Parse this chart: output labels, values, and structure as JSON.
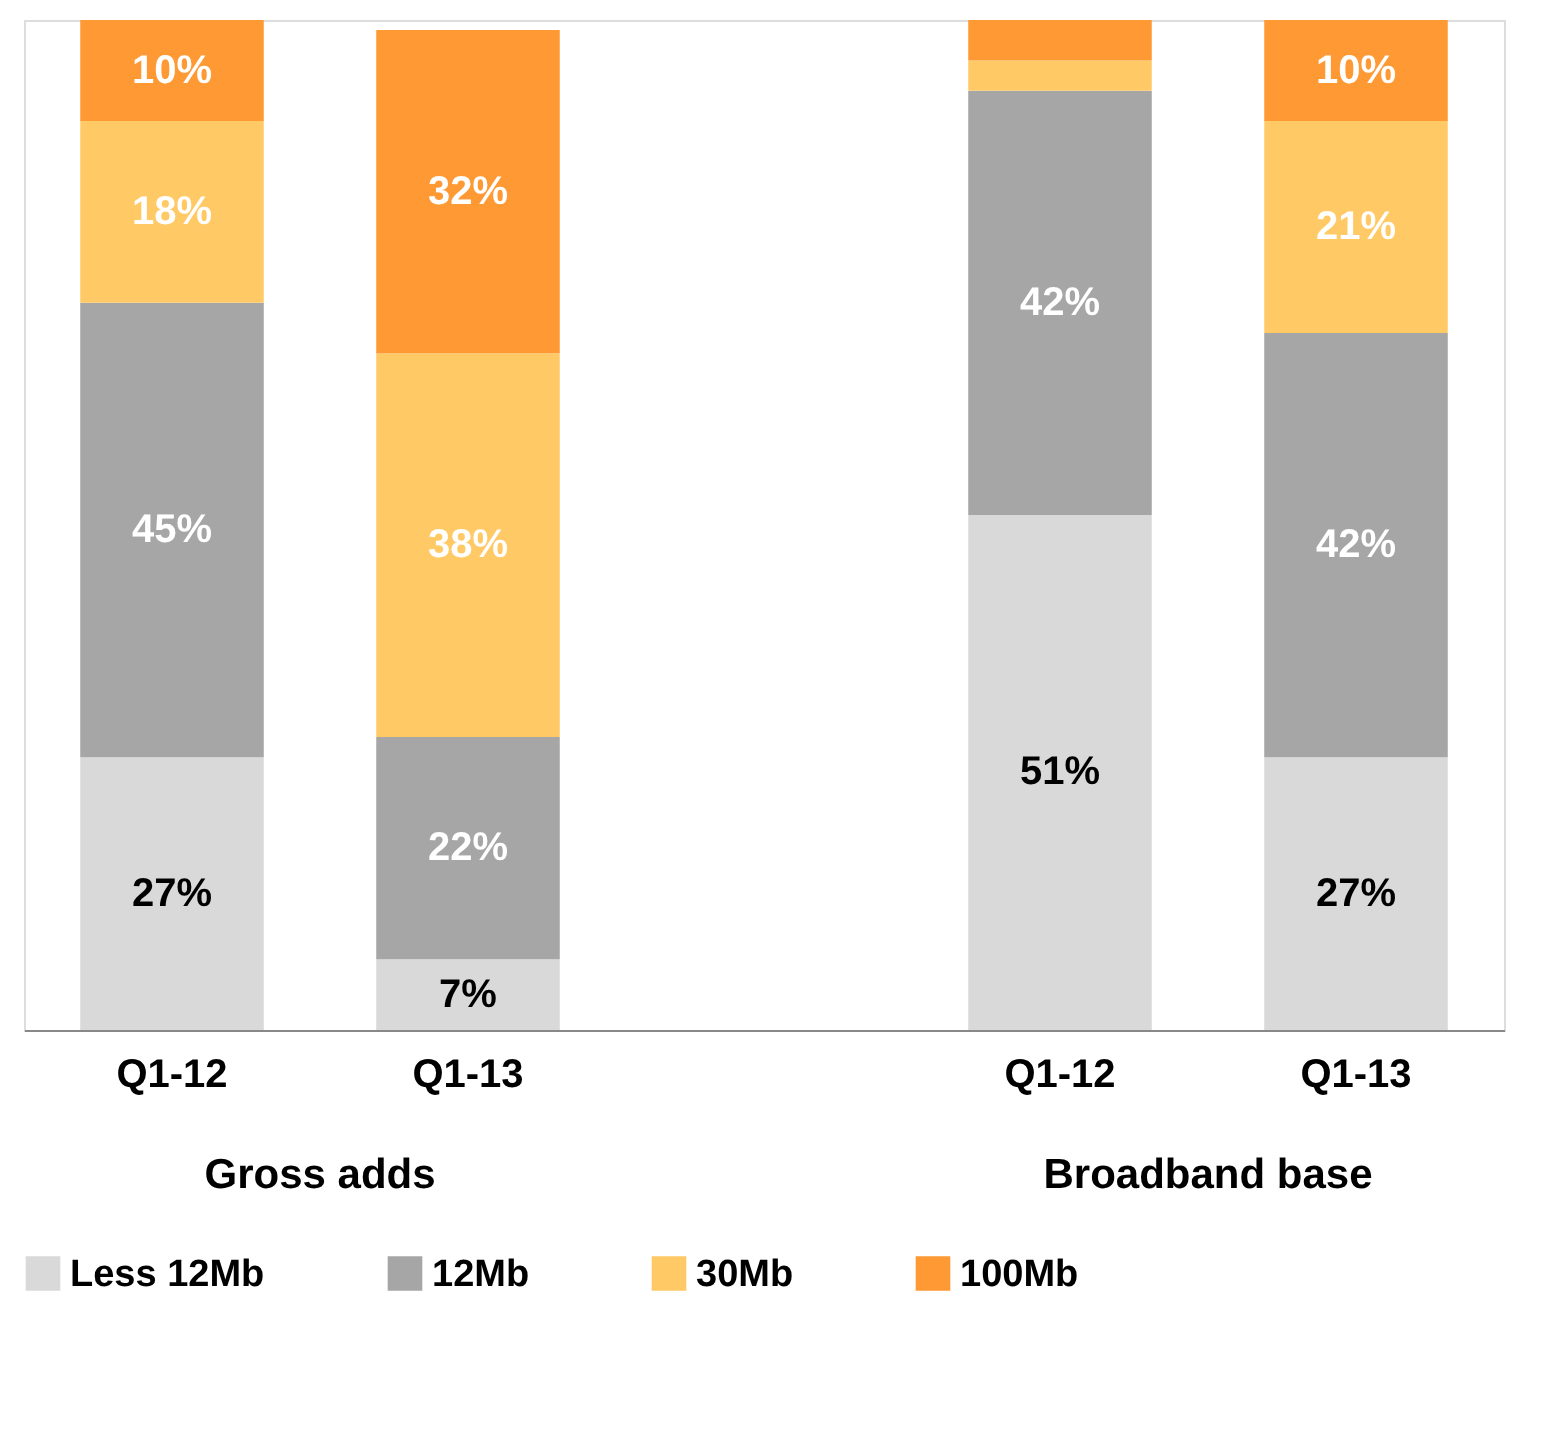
{
  "chart_data": {
    "type": "bar",
    "stacked": true,
    "categories": [
      "Q1-12",
      "Q1-13",
      null,
      "Q1-12",
      "Q1-13"
    ],
    "ylim": [
      0,
      100
    ],
    "tick_labels": "x",
    "grid": false,
    "legend": "bottom",
    "annotations": [
      "Gross adds",
      "Broadband base"
    ],
    "series": [
      {
        "name": "Less 12Mb",
        "color": "#d9d9d9",
        "values": [
          27,
          7,
          null,
          51,
          27
        ],
        "value_labels": [
          "27%",
          "7%",
          null,
          "51%",
          "27%"
        ]
      },
      {
        "name": "12Mb",
        "color": "#a6a6a6",
        "values": [
          45,
          22,
          null,
          42,
          42
        ],
        "value_labels": [
          "45%",
          "22%",
          null,
          "42%",
          "42%"
        ]
      },
      {
        "name": "30Mb",
        "color": "#ffc966",
        "values": [
          18,
          38,
          null,
          3,
          21
        ],
        "value_labels": [
          "18%",
          "38%",
          null,
          null,
          "21%"
        ]
      },
      {
        "name": "100Mb",
        "color": "#ff9933",
        "values": [
          10,
          32,
          null,
          4,
          10
        ],
        "value_labels": [
          "10%",
          "32%",
          null,
          null,
          "10%"
        ]
      }
    ]
  }
}
